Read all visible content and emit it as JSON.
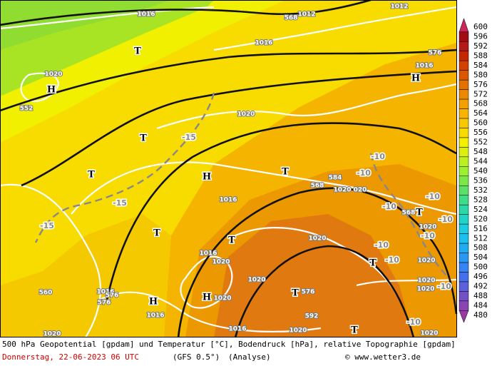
{
  "map": {
    "labels": [
      "1016",
      "568",
      "1012",
      "1012",
      "576",
      "1016",
      "H",
      "1016",
      "T",
      "1020",
      "H",
      "552",
      "1020",
      "T",
      "-15",
      "T",
      "H",
      "T",
      "584",
      "-10",
      "-10",
      "568",
      "1020",
      "020",
      "-10",
      "1016",
      "-15",
      "-15",
      "T",
      "-10",
      "568",
      "-10",
      "1020",
      "-10",
      "T",
      "1020",
      "T",
      "1016",
      "-10",
      "1020",
      "-10",
      "1020",
      "T",
      "1020",
      "1020",
      "1020",
      "-10",
      "1016",
      "576",
      "560",
      "576",
      "H",
      "H",
      "1020",
      "T",
      "576",
      "592",
      "1016",
      "-10",
      "1016",
      "1020",
      "T",
      "1020",
      "1020"
    ]
  },
  "colorbar": {
    "levels": [
      480,
      484,
      488,
      492,
      496,
      500,
      504,
      508,
      512,
      516,
      520,
      524,
      528,
      532,
      536,
      540,
      544,
      548,
      552,
      556,
      560,
      564,
      568,
      572,
      576,
      580,
      584,
      588,
      592,
      596,
      600
    ],
    "colors": [
      "#9a3aa0",
      "#8a44b4",
      "#7450c8",
      "#5c60dc",
      "#4470ec",
      "#3484f4",
      "#2898f4",
      "#20acf0",
      "#1cc0ec",
      "#1ccce0",
      "#20d4c8",
      "#2cd8a8",
      "#40dc88",
      "#5ce068",
      "#7ce848",
      "#9cf030",
      "#bcf020",
      "#dcf010",
      "#f4f000",
      "#f8dc00",
      "#f8c800",
      "#f8b400",
      "#f4a000",
      "#ec8800",
      "#e47000",
      "#dc5800",
      "#d44000",
      "#c42800",
      "#b41818",
      "#a40c14",
      "#c82858"
    ]
  },
  "footer": {
    "description": "500 hPa Geopotential [gpdam] und Temperatur [°C], Bodendruck [hPa], relative Topographie [gpdam]",
    "date": "Donnerstag, 22-06-2023  06 UTC",
    "model": "(GFS 0.5°)",
    "run": "(Analyse)",
    "credit": "© www.wetter3.de"
  }
}
